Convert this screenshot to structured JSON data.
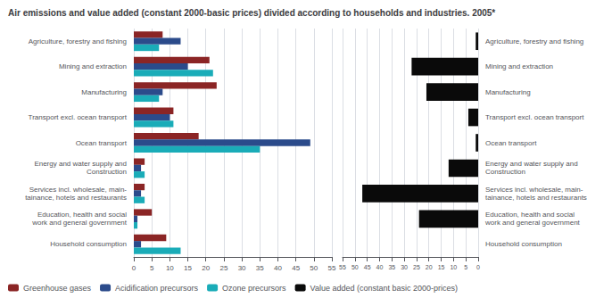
{
  "chart_data": [
    {
      "type": "bar",
      "orientation": "horizontal",
      "title": "Air emissions and value added (constant 2000-basic prices) divided according to households and industries. 2005*",
      "categories": [
        "Agriculture, forestry and fishing",
        "Mining and extraction",
        "Manufacturing",
        "Transport excl. ocean transport",
        "Ocean transport",
        "Energy and water supply and\nConstruction",
        "Services incl. wholesale, main-\ntainance, hotels and restaurants",
        "Education, health and social\nwork and general government",
        "Household consumption"
      ],
      "series": [
        {
          "name": "Greenhouse gases",
          "color": "#8B2525",
          "values": [
            8,
            21,
            23,
            11,
            18,
            3,
            3,
            5,
            9
          ]
        },
        {
          "name": "Acidification precursors",
          "color": "#2B4B8B",
          "values": [
            13,
            15,
            8,
            10,
            49,
            2,
            2,
            1,
            2
          ]
        },
        {
          "name": "Ozone precursors",
          "color": "#1AACB8",
          "values": [
            7,
            22,
            7,
            11,
            35,
            3,
            3,
            1,
            13
          ]
        }
      ],
      "xlim": [
        0,
        55
      ],
      "xticks": [
        0,
        5,
        10,
        15,
        20,
        25,
        30,
        35,
        40,
        45,
        50,
        55
      ],
      "grid": true,
      "legend": "lower left"
    },
    {
      "type": "bar",
      "orientation": "horizontal",
      "categories": [
        "Agriculture, forestry and fishing",
        "Mining and extraction",
        "Manufacturing",
        "Transport excl. ocean transport",
        "Ocean transport",
        "Energy and water supply and\nConstruction",
        "Services incl. wholesale, main-\ntainance, hotels and restaurants",
        "Education, health and social\nwork and general government",
        "Household consumption"
      ],
      "series": [
        {
          "name": "Value added (constant basic 2000-prices)",
          "color": "#0a0a0a",
          "values": [
            1,
            27,
            21,
            4,
            1,
            12,
            47,
            24,
            0
          ]
        }
      ],
      "xlim": [
        55,
        0
      ],
      "xticks": [
        55,
        50,
        45,
        40,
        35,
        30,
        25,
        20,
        15,
        10,
        5,
        0
      ],
      "grid": true,
      "legend": "lower left"
    }
  ]
}
